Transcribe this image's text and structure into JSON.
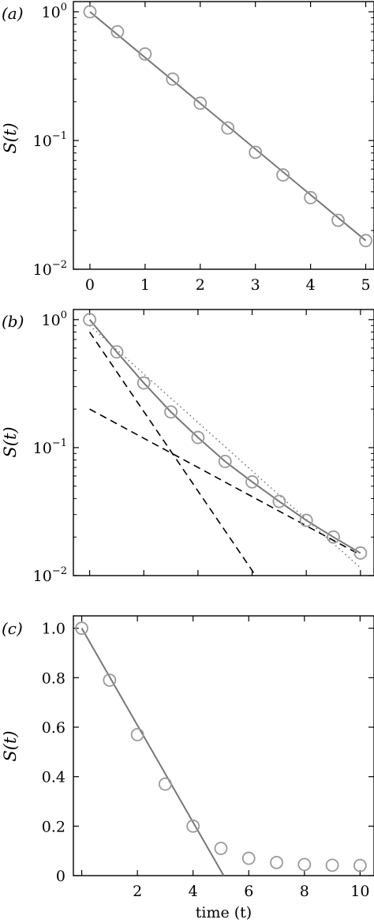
{
  "chart_data": [
    {
      "type": "line",
      "panel_label": "(a)",
      "ylabel": "S(t)",
      "xlabel": "",
      "y_scale": "log",
      "xlim": [
        -0.3,
        5.15
      ],
      "ylim": [
        0.01,
        1.2
      ],
      "x_ticks": [
        {
          "value": 0,
          "label": "0"
        },
        {
          "value": 1,
          "label": "1"
        },
        {
          "value": 2,
          "label": "2"
        },
        {
          "value": 3,
          "label": "3"
        },
        {
          "value": 4,
          "label": "4"
        },
        {
          "value": 5,
          "label": "5"
        }
      ],
      "y_ticks": [
        {
          "value": 1,
          "base": "10",
          "exp": "0"
        },
        {
          "value": 0.1,
          "base": "10",
          "exp": "−1"
        },
        {
          "value": 0.01,
          "base": "10",
          "exp": "−2"
        }
      ],
      "series": [
        {
          "kind": "markers",
          "x": [
            0,
            0.5,
            1,
            1.5,
            2,
            2.5,
            3,
            3.5,
            4,
            4.5,
            5
          ],
          "y": [
            1.0,
            0.7,
            0.47,
            0.3,
            0.195,
            0.125,
            0.081,
            0.054,
            0.036,
            0.024,
            0.0167
          ]
        },
        {
          "kind": "line",
          "style": "solid",
          "x": [
            0,
            5
          ],
          "y": [
            1.0,
            0.0167
          ]
        }
      ]
    },
    {
      "type": "line",
      "panel_label": "(b)",
      "ylabel": "S(t)",
      "xlabel": "",
      "y_scale": "log",
      "xlim": [
        -0.6,
        10.5
      ],
      "ylim": [
        0.01,
        1.2
      ],
      "x_ticks": [
        {
          "value": 0,
          "label": ""
        },
        {
          "value": 2,
          "label": ""
        },
        {
          "value": 4,
          "label": ""
        },
        {
          "value": 6,
          "label": ""
        },
        {
          "value": 8,
          "label": ""
        },
        {
          "value": 10,
          "label": ""
        }
      ],
      "y_ticks": [
        {
          "value": 1,
          "base": "10",
          "exp": "0"
        },
        {
          "value": 0.1,
          "base": "10",
          "exp": "−1"
        },
        {
          "value": 0.01,
          "base": "10",
          "exp": "−2"
        }
      ],
      "series": [
        {
          "kind": "markers",
          "x": [
            0,
            1,
            2,
            3,
            4,
            5,
            6,
            7,
            8,
            9,
            10
          ],
          "y": [
            1.0,
            0.56,
            0.32,
            0.19,
            0.12,
            0.078,
            0.054,
            0.038,
            0.027,
            0.02,
            0.015
          ]
        },
        {
          "kind": "line",
          "style": "solid",
          "x": [
            0,
            1,
            2,
            3,
            4,
            5,
            6,
            7,
            8,
            9,
            10
          ],
          "y": [
            1.0,
            0.56,
            0.32,
            0.19,
            0.12,
            0.078,
            0.054,
            0.038,
            0.027,
            0.02,
            0.015
          ]
        },
        {
          "kind": "line",
          "style": "dashed",
          "x": [
            0,
            6.2
          ],
          "y": [
            0.8,
            0.0095
          ]
        },
        {
          "kind": "line",
          "style": "dashed",
          "x": [
            0,
            10
          ],
          "y": [
            0.2,
            0.0145
          ]
        },
        {
          "kind": "line",
          "style": "dotted",
          "x": [
            0,
            10
          ],
          "y": [
            0.9,
            0.0115
          ]
        }
      ]
    },
    {
      "type": "line",
      "panel_label": "(c)",
      "ylabel": "S(t)",
      "xlabel": "time (t)",
      "y_scale": "linear",
      "xlim": [
        -0.3,
        10.5
      ],
      "ylim": [
        0,
        1.05
      ],
      "x_ticks": [
        {
          "value": 0,
          "label": ""
        },
        {
          "value": 2,
          "label": "2"
        },
        {
          "value": 4,
          "label": "4"
        },
        {
          "value": 6,
          "label": "6"
        },
        {
          "value": 8,
          "label": "8"
        },
        {
          "value": 10,
          "label": "10"
        }
      ],
      "y_ticks": [
        {
          "value": 0,
          "label": "0"
        },
        {
          "value": 0.2,
          "label": "0.2"
        },
        {
          "value": 0.4,
          "label": "0.4"
        },
        {
          "value": 0.6,
          "label": "0.6"
        },
        {
          "value": 0.8,
          "label": "0.8"
        },
        {
          "value": 1.0,
          "label": "1.0"
        }
      ],
      "series": [
        {
          "kind": "markers",
          "x": [
            0,
            1,
            2,
            3,
            4,
            5,
            6,
            7,
            8,
            9,
            10
          ],
          "y": [
            1.0,
            0.79,
            0.57,
            0.37,
            0.2,
            0.11,
            0.07,
            0.053,
            0.045,
            0.042,
            0.041
          ]
        },
        {
          "kind": "line",
          "style": "solid",
          "x": [
            0,
            5.1
          ],
          "y": [
            1.0,
            0.0
          ]
        }
      ]
    }
  ]
}
